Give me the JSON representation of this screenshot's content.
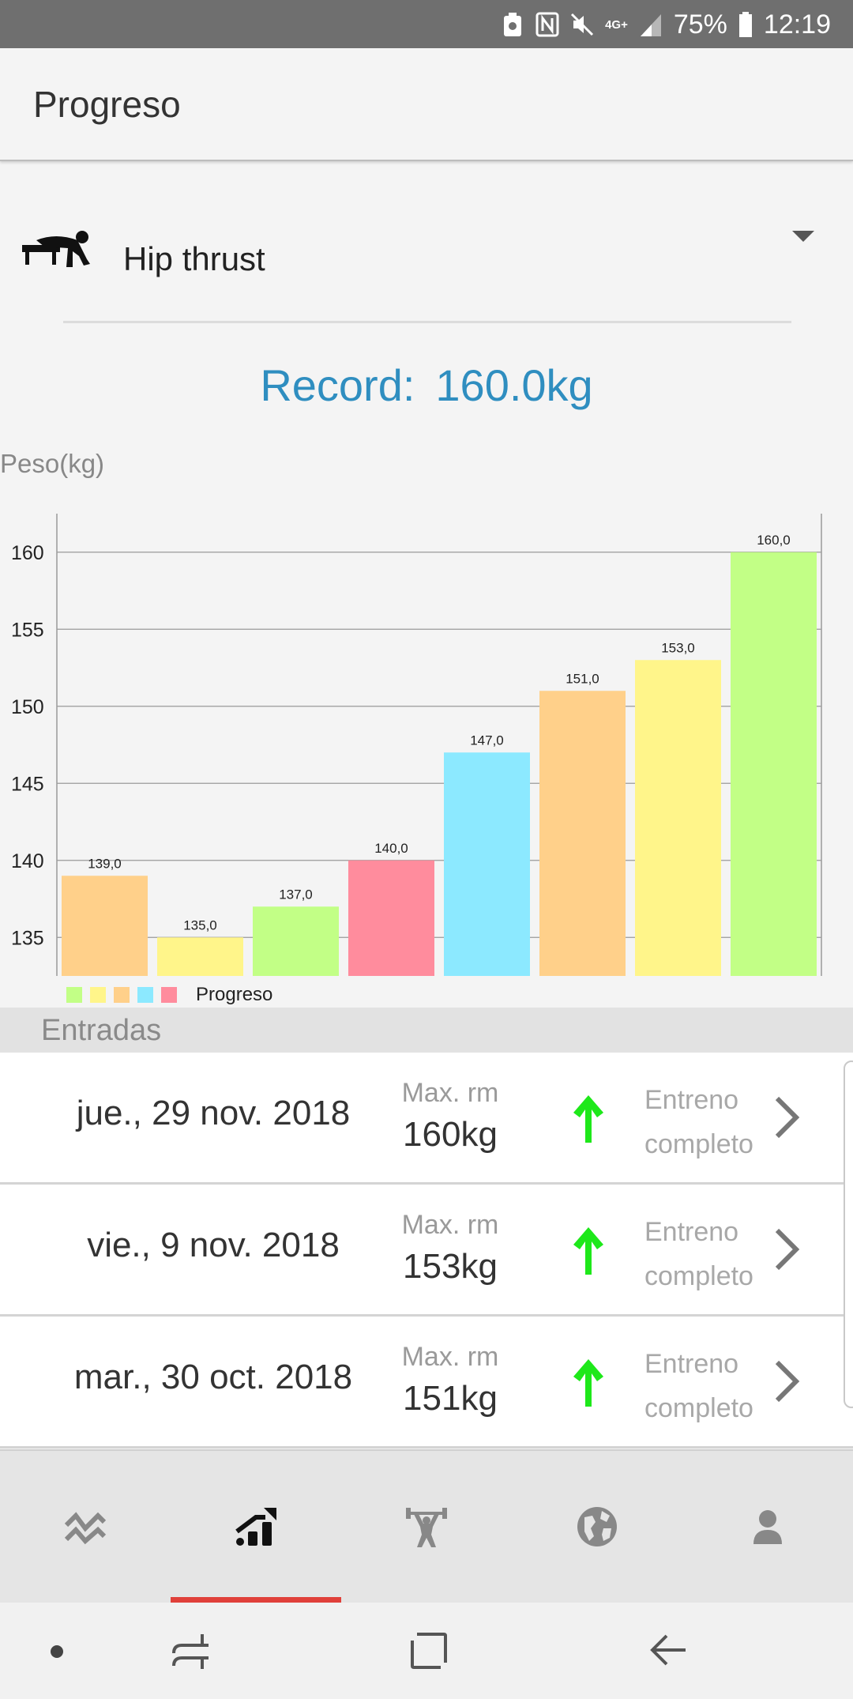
{
  "status_bar": {
    "network": "4G+",
    "battery": "75%",
    "time": "12:19",
    "icons": [
      "battery-saver-icon",
      "nfc-icon",
      "mute-icon",
      "signal-icon",
      "battery-icon"
    ]
  },
  "app_bar": {
    "title": "Progreso"
  },
  "exercise": {
    "name": "Hip thrust",
    "icon": "hip-thrust-icon"
  },
  "record": {
    "label": "Record:",
    "value": "160.0kg",
    "color": "#2f8ec0"
  },
  "chart_data": {
    "type": "bar",
    "ylabel": "Peso(kg)",
    "ylim": [
      132.5,
      162.5
    ],
    "yticks": [
      135,
      140,
      145,
      150,
      155,
      160
    ],
    "values": [
      139.0,
      135.0,
      137.0,
      140.0,
      147.0,
      151.0,
      153.0,
      160.0
    ],
    "value_labels": [
      "139,0",
      "135,0",
      "137,0",
      "140,0",
      "147,0",
      "151,0",
      "153,0",
      "160,0"
    ],
    "colors": [
      "#ffd08a",
      "#fff58a",
      "#c2ff86",
      "#ff8c9d",
      "#8ce9ff",
      "#ffd08a",
      "#fff58a",
      "#c2ff86"
    ],
    "grid": true,
    "legend": {
      "position": "bottom-left",
      "label": "Progreso",
      "swatches": [
        "#c2ff86",
        "#fff58a",
        "#ffd08a",
        "#8ce9ff",
        "#ff8c9d"
      ]
    }
  },
  "entries_section": {
    "title": "Entradas"
  },
  "entries": [
    {
      "date": "jue., 29 nov. 2018",
      "max_label": "Max. rm",
      "max_value": "160kg",
      "status_line1": "Entreno",
      "status_line2": "completo",
      "trend": "up"
    },
    {
      "date": "vie., 9 nov. 2018",
      "max_label": "Max. rm",
      "max_value": "153kg",
      "status_line1": "Entreno",
      "status_line2": "completo",
      "trend": "up"
    },
    {
      "date": "mar., 30 oct. 2018",
      "max_label": "Max. rm",
      "max_value": "151kg",
      "status_line1": "Entreno",
      "status_line2": "completo",
      "trend": "up"
    }
  ],
  "bottom_nav": {
    "items": [
      "activity-icon",
      "progress-icon",
      "weightlifter-icon",
      "globe-icon",
      "profile-icon"
    ],
    "active_index": 1,
    "active_color": "#e0403a"
  },
  "system_nav": [
    "dot-icon",
    "recents-icon",
    "home-icon",
    "back-icon"
  ]
}
